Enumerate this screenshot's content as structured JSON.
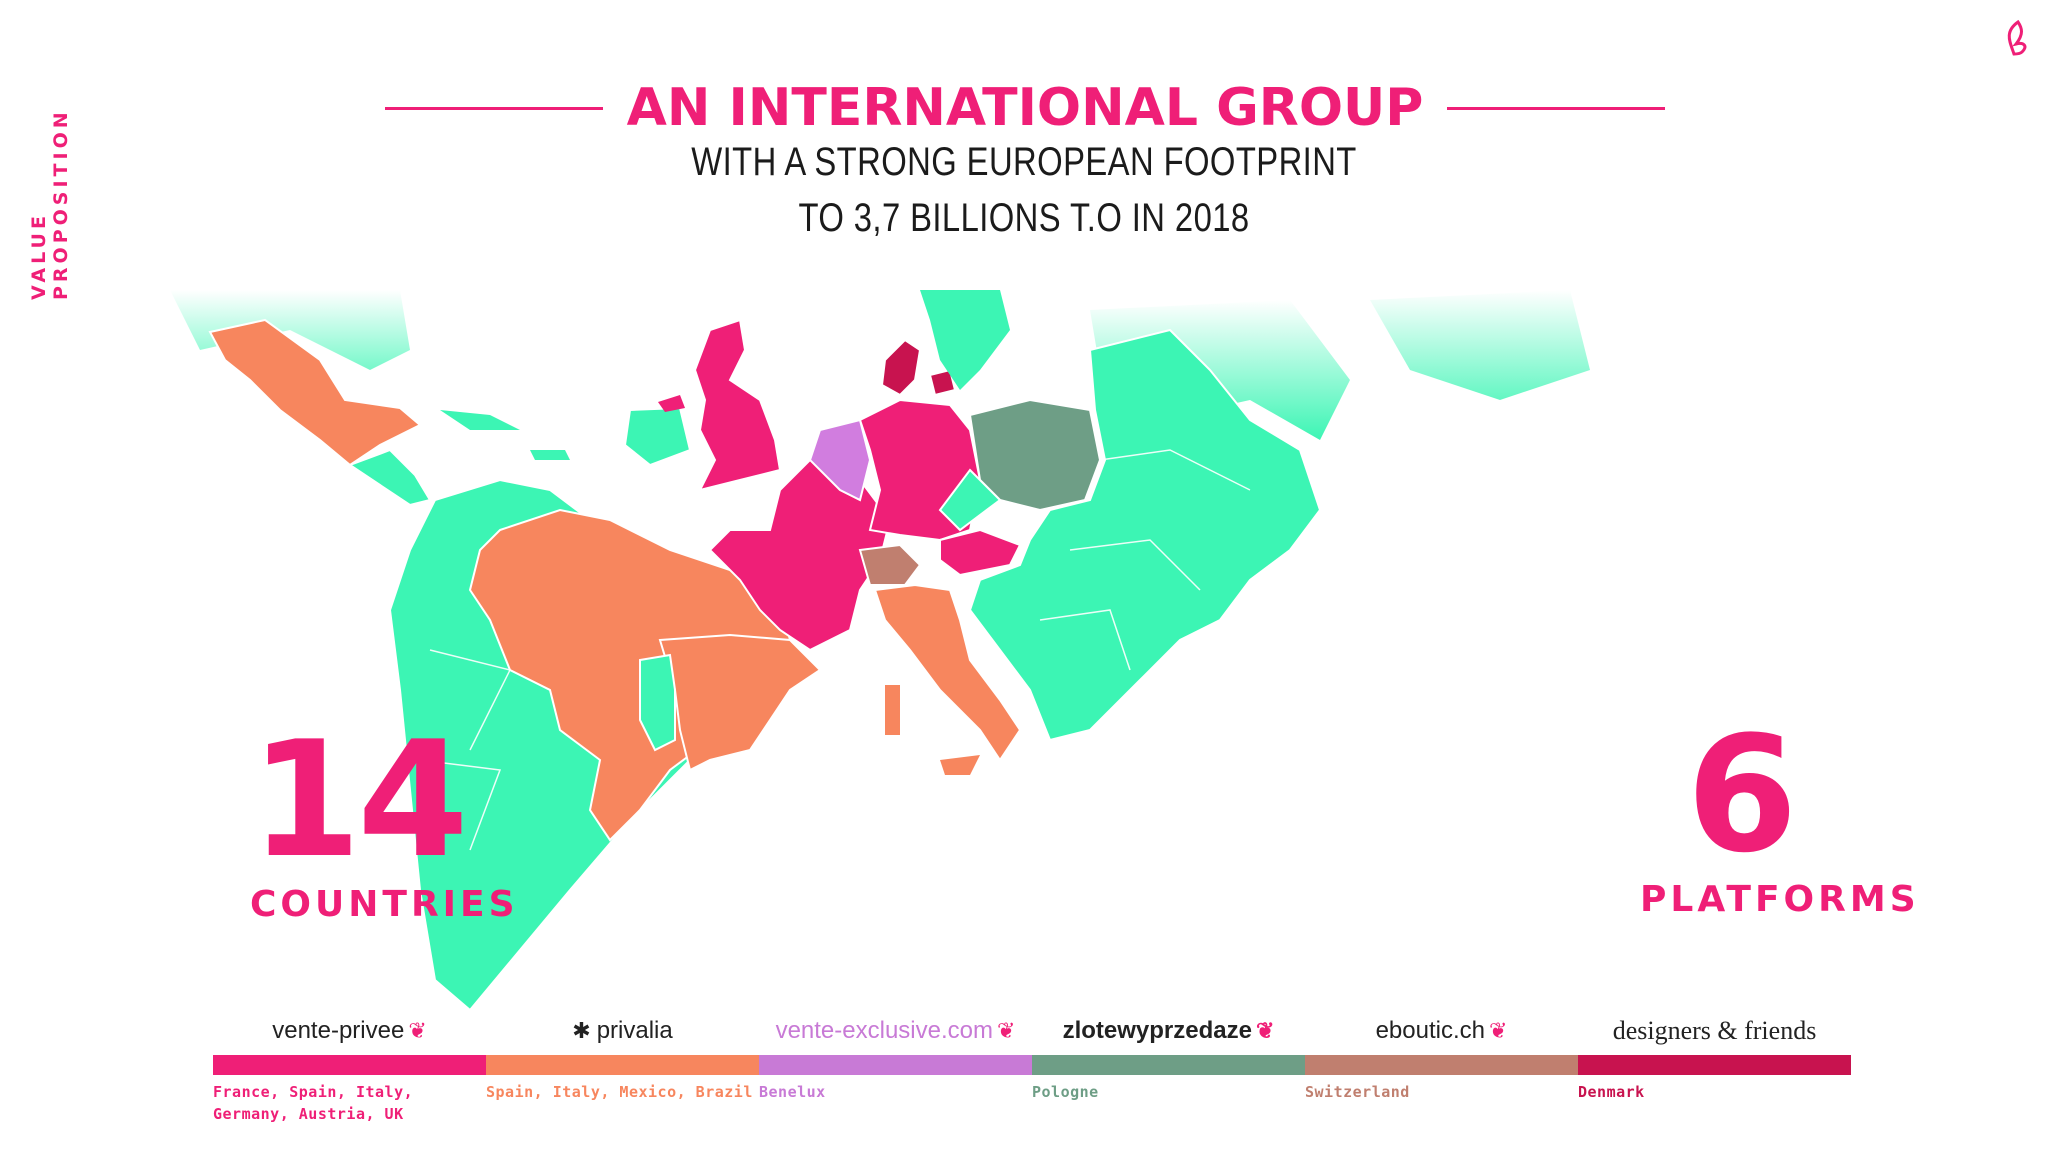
{
  "side_label": "VALUE PROPOSITION",
  "title": "AN INTERNATIONAL GROUP",
  "subtitle_line1": "WITH A STRONG EUROPEAN FOOTPRINT",
  "subtitle_line2": "TO 3,7 BILLIONS T.O IN 2018",
  "stats": {
    "countries_number": "14",
    "countries_label": "COUNTRIES",
    "platforms_number": "6",
    "platforms_label": "PLATFORMS"
  },
  "platforms": [
    {
      "brand": "vente-privee",
      "countries": "France, Spain, Italy, Germany, Austria, UK",
      "color": "#ef1f77"
    },
    {
      "brand": "privalia",
      "countries": "Spain, Italy, Mexico, Brazil",
      "color": "#f7865e"
    },
    {
      "brand": "vente-exclusive.com",
      "countries": "Benelux",
      "color": "#c87ad6"
    },
    {
      "brand": "zlotewyprzedaze",
      "countries": "Pologne",
      "color": "#6e9e86"
    },
    {
      "brand": "eboutic.ch",
      "countries": "Switzerland",
      "color": "#c07f6f"
    },
    {
      "brand": "designers & friends",
      "countries": "Denmark",
      "color": "#c8134f"
    }
  ],
  "colors": {
    "accent": "#ef1f77",
    "other_countries": "#3cf5b4"
  }
}
